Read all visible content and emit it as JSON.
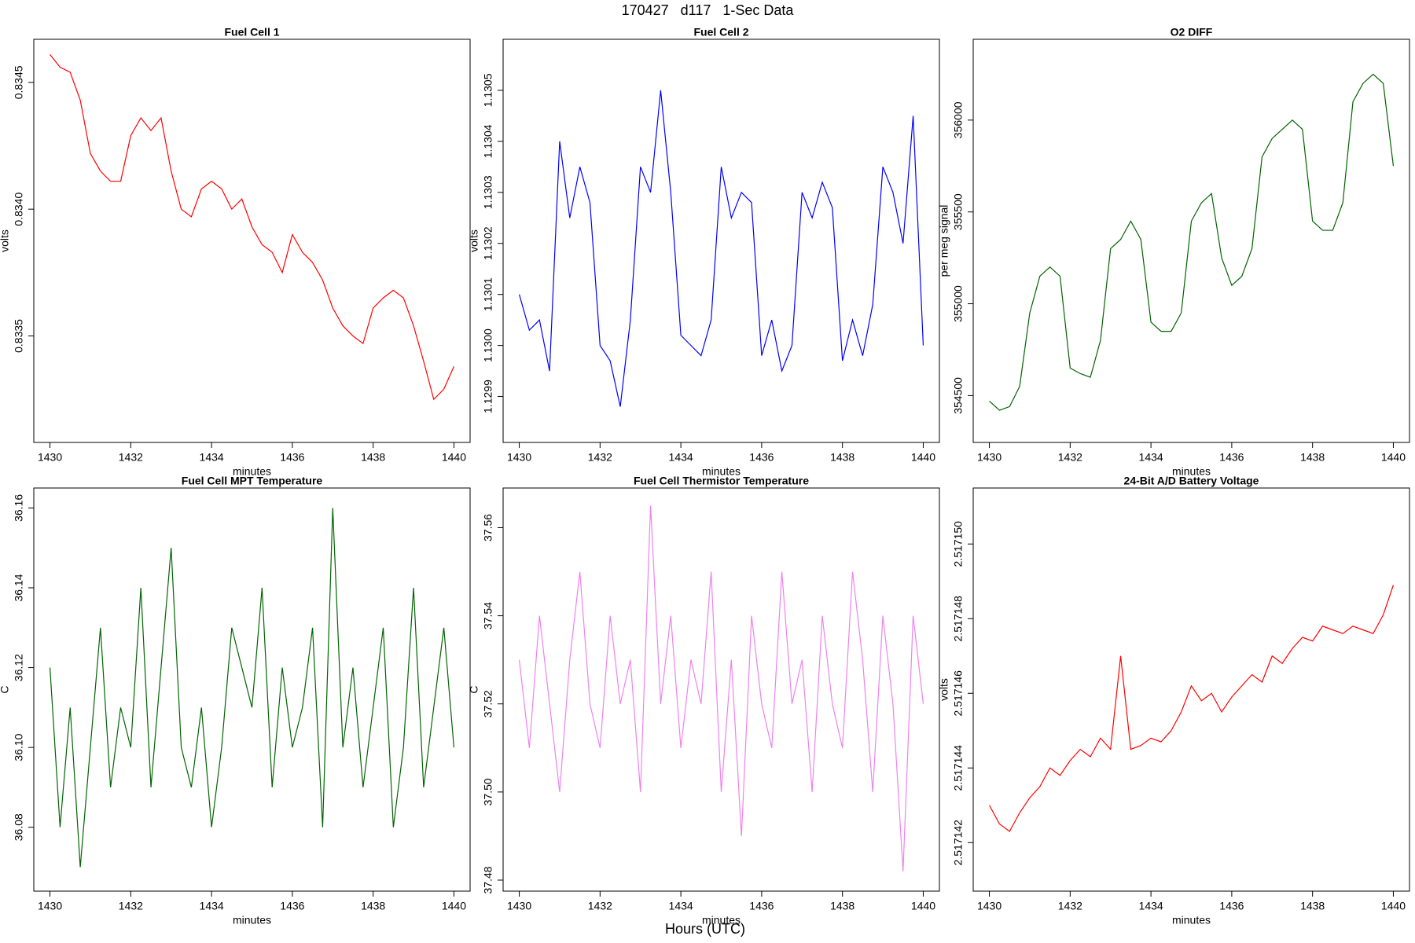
{
  "title": "170427   d117   1-Sec Data",
  "xlabel": "Hours (UTC)",
  "chart_data": [
    {
      "type": "line",
      "title": "Fuel Cell 1",
      "xlabel": "minutes",
      "ylabel": "volts",
      "color": "#ff0000",
      "x": [
        1430,
        1430.25,
        1430.5,
        1430.75,
        1431,
        1431.25,
        1431.5,
        1431.75,
        1432,
        1432.25,
        1432.5,
        1432.75,
        1433,
        1433.25,
        1433.5,
        1433.75,
        1434,
        1434.25,
        1434.5,
        1434.75,
        1435,
        1435.25,
        1435.5,
        1435.75,
        1436,
        1436.25,
        1436.5,
        1436.75,
        1437,
        1437.25,
        1437.5,
        1437.75,
        1438,
        1438.25,
        1438.5,
        1438.75,
        1439,
        1439.25,
        1439.5,
        1439.75,
        1440
      ],
      "values": [
        0.83461,
        0.83456,
        0.83454,
        0.83443,
        0.83422,
        0.83415,
        0.83411,
        0.83411,
        0.83429,
        0.83436,
        0.83431,
        0.83436,
        0.83415,
        0.834,
        0.83397,
        0.83408,
        0.83411,
        0.83408,
        0.834,
        0.83404,
        0.83393,
        0.83386,
        0.83383,
        0.83375,
        0.8339,
        0.83383,
        0.83379,
        0.83372,
        0.83361,
        0.83354,
        0.8335,
        0.83347,
        0.83361,
        0.83365,
        0.83368,
        0.83365,
        0.83354,
        0.8334,
        0.83325,
        0.83329,
        0.83338
      ],
      "xlim": [
        1429.6,
        1440.4
      ],
      "xticks": [
        1430,
        1432,
        1434,
        1436,
        1438,
        1440
      ],
      "ylim": [
        0.83308,
        0.83467
      ],
      "yticks": [
        0.8335,
        {
          "value": 0.834,
          "label": "0.8340"
        },
        0.8345
      ]
    },
    {
      "type": "line",
      "title": "Fuel Cell 2",
      "xlabel": "minutes",
      "ylabel": "volts",
      "color": "#0000ff",
      "x": [
        1430,
        1430.25,
        1430.5,
        1430.75,
        1431,
        1431.25,
        1431.5,
        1431.75,
        1432,
        1432.25,
        1432.5,
        1432.75,
        1433,
        1433.25,
        1433.5,
        1433.75,
        1434,
        1434.25,
        1434.5,
        1434.75,
        1435,
        1435.25,
        1435.5,
        1435.75,
        1436,
        1436.25,
        1436.5,
        1436.75,
        1437,
        1437.25,
        1437.5,
        1437.75,
        1438,
        1438.25,
        1438.5,
        1438.75,
        1439,
        1439.25,
        1439.5,
        1439.75,
        1440
      ],
      "values": [
        1.1301,
        1.13003,
        1.13005,
        1.12995,
        1.1304,
        1.13025,
        1.13035,
        1.13028,
        1.13,
        1.12997,
        1.12988,
        1.13005,
        1.13035,
        1.1303,
        1.1305,
        1.1303,
        1.13002,
        1.13,
        1.12998,
        1.13005,
        1.13035,
        1.13025,
        1.1303,
        1.13028,
        1.12998,
        1.13005,
        1.12995,
        1.13,
        1.1303,
        1.13025,
        1.13032,
        1.13027,
        1.12997,
        1.13005,
        1.12998,
        1.13008,
        1.13035,
        1.1303,
        1.1302,
        1.13045,
        1.13
      ],
      "xlim": [
        1429.6,
        1440.4
      ],
      "xticks": [
        1430,
        1432,
        1434,
        1436,
        1438,
        1440
      ],
      "ylim": [
        1.12981,
        1.1306
      ],
      "yticks": [
        1.1299,
        {
          "value": 1.13,
          "label": "1.1300"
        },
        1.1301,
        1.1302,
        1.1303,
        1.1304,
        1.1305
      ]
    },
    {
      "type": "line",
      "title": "O2 DIFF",
      "xlabel": "minutes",
      "ylabel": "per meg signal",
      "color": "#006400",
      "x": [
        1430,
        1430.25,
        1430.5,
        1430.75,
        1431,
        1431.25,
        1431.5,
        1431.75,
        1432,
        1432.25,
        1432.5,
        1432.75,
        1433,
        1433.25,
        1433.5,
        1433.75,
        1434,
        1434.25,
        1434.5,
        1434.75,
        1435,
        1435.25,
        1435.5,
        1435.75,
        1436,
        1436.25,
        1436.5,
        1436.75,
        1437,
        1437.25,
        1437.5,
        1437.75,
        1438,
        1438.25,
        1438.5,
        1438.75,
        1439,
        1439.25,
        1439.5,
        1439.75,
        1440
      ],
      "values": [
        354470,
        354420,
        354440,
        354550,
        354950,
        355150,
        355200,
        355150,
        354650,
        354620,
        354600,
        354800,
        355300,
        355350,
        355450,
        355350,
        354900,
        354850,
        354850,
        354950,
        355450,
        355550,
        355600,
        355250,
        355100,
        355150,
        355300,
        355800,
        355900,
        355950,
        356000,
        355950,
        355450,
        355400,
        355400,
        355550,
        356100,
        356200,
        356250,
        356200,
        355750
      ],
      "xlim": [
        1429.6,
        1440.4
      ],
      "xticks": [
        1430,
        1432,
        1434,
        1436,
        1438,
        1440
      ],
      "ylim": [
        354245,
        356440
      ],
      "yticks": [
        354500,
        355000,
        355500,
        356000
      ]
    },
    {
      "type": "line",
      "title": "Fuel Cell MPT Temperature",
      "xlabel": "minutes",
      "ylabel": "C",
      "color": "#006400",
      "x": [
        1430,
        1430.25,
        1430.5,
        1430.75,
        1431,
        1431.25,
        1431.5,
        1431.75,
        1432,
        1432.25,
        1432.5,
        1432.75,
        1433,
        1433.25,
        1433.5,
        1433.75,
        1434,
        1434.25,
        1434.5,
        1434.75,
        1435,
        1435.25,
        1435.5,
        1435.75,
        1436,
        1436.25,
        1436.5,
        1436.75,
        1437,
        1437.25,
        1437.5,
        1437.75,
        1438,
        1438.25,
        1438.5,
        1438.75,
        1439,
        1439.25,
        1439.5,
        1439.75,
        1440
      ],
      "values": [
        36.12,
        36.08,
        36.11,
        36.07,
        36.1,
        36.13,
        36.09,
        36.11,
        36.1,
        36.14,
        36.09,
        36.12,
        36.15,
        36.1,
        36.09,
        36.11,
        36.08,
        36.1,
        36.13,
        36.12,
        36.11,
        36.14,
        36.09,
        36.12,
        36.1,
        36.11,
        36.13,
        36.08,
        36.16,
        36.1,
        36.12,
        36.09,
        36.11,
        36.13,
        36.08,
        36.1,
        36.14,
        36.09,
        36.11,
        36.13,
        36.1
      ],
      "xlim": [
        1429.6,
        1440.4
      ],
      "xticks": [
        1430,
        1432,
        1434,
        1436,
        1438,
        1440
      ],
      "ylim": [
        36.064,
        36.165
      ],
      "yticks": [
        36.08,
        {
          "value": 36.1,
          "label": "36.10"
        },
        36.12,
        36.14,
        36.16
      ]
    },
    {
      "type": "line",
      "title": "Fuel Cell Thermistor Temperature",
      "xlabel": "minutes",
      "ylabel": "C",
      "color": "#ee82ee",
      "x": [
        1430,
        1430.25,
        1430.5,
        1430.75,
        1431,
        1431.25,
        1431.5,
        1431.75,
        1432,
        1432.25,
        1432.5,
        1432.75,
        1433,
        1433.25,
        1433.5,
        1433.75,
        1434,
        1434.25,
        1434.5,
        1434.75,
        1435,
        1435.25,
        1435.5,
        1435.75,
        1436,
        1436.25,
        1436.5,
        1436.75,
        1437,
        1437.25,
        1437.5,
        1437.75,
        1438,
        1438.25,
        1438.5,
        1438.75,
        1439,
        1439.25,
        1439.5,
        1439.75,
        1440
      ],
      "values": [
        37.53,
        37.51,
        37.54,
        37.52,
        37.5,
        37.53,
        37.55,
        37.52,
        37.51,
        37.54,
        37.52,
        37.53,
        37.5,
        37.565,
        37.52,
        37.54,
        37.51,
        37.53,
        37.52,
        37.55,
        37.5,
        37.53,
        37.49,
        37.54,
        37.52,
        37.51,
        37.55,
        37.52,
        37.53,
        37.5,
        37.54,
        37.52,
        37.51,
        37.55,
        37.53,
        37.5,
        37.54,
        37.52,
        37.482,
        37.54,
        37.52
      ],
      "xlim": [
        1429.6,
        1440.4
      ],
      "xticks": [
        1430,
        1432,
        1434,
        1436,
        1438,
        1440
      ],
      "ylim": [
        37.4775,
        37.569
      ],
      "yticks": [
        37.48,
        {
          "value": 37.5,
          "label": "37.50"
        },
        37.52,
        37.54,
        37.56
      ]
    },
    {
      "type": "line",
      "title": "24-Bit A/D Battery Voltage",
      "xlabel": "minutes",
      "ylabel": "volts",
      "color": "#ff0000",
      "x": [
        1430,
        1430.25,
        1430.5,
        1430.75,
        1431,
        1431.25,
        1431.5,
        1431.75,
        1432,
        1432.25,
        1432.5,
        1432.75,
        1433,
        1433.25,
        1433.5,
        1433.75,
        1434,
        1434.25,
        1434.5,
        1434.75,
        1435,
        1435.25,
        1435.5,
        1435.75,
        1436,
        1436.25,
        1436.5,
        1436.75,
        1437,
        1437.25,
        1437.5,
        1437.75,
        1438,
        1438.25,
        1438.5,
        1438.75,
        1439,
        1439.25,
        1439.5,
        1439.75,
        1440
      ],
      "values": [
        2.517143,
        2.5171425,
        2.5171423,
        2.5171428,
        2.5171432,
        2.5171435,
        2.517144,
        2.5171438,
        2.5171442,
        2.5171445,
        2.5171443,
        2.5171448,
        2.5171445,
        2.517147,
        2.5171445,
        2.5171446,
        2.5171448,
        2.5171447,
        2.517145,
        2.5171455,
        2.5171462,
        2.5171458,
        2.517146,
        2.5171455,
        2.5171459,
        2.5171462,
        2.5171465,
        2.5171463,
        2.517147,
        2.5171468,
        2.5171472,
        2.5171475,
        2.5171474,
        2.5171478,
        2.5171477,
        2.5171476,
        2.5171478,
        2.5171477,
        2.5171476,
        2.5171481,
        2.5171489
      ],
      "xlim": [
        1429.6,
        1440.4
      ],
      "xticks": [
        1430,
        1432,
        1434,
        1436,
        1438,
        1440
      ],
      "ylim": [
        2.5171407,
        2.5171515
      ],
      "yticks": [
        2.517142,
        2.517144,
        2.517146,
        2.517148,
        {
          "value": 2.51715,
          "label": "2.517150"
        }
      ]
    }
  ]
}
